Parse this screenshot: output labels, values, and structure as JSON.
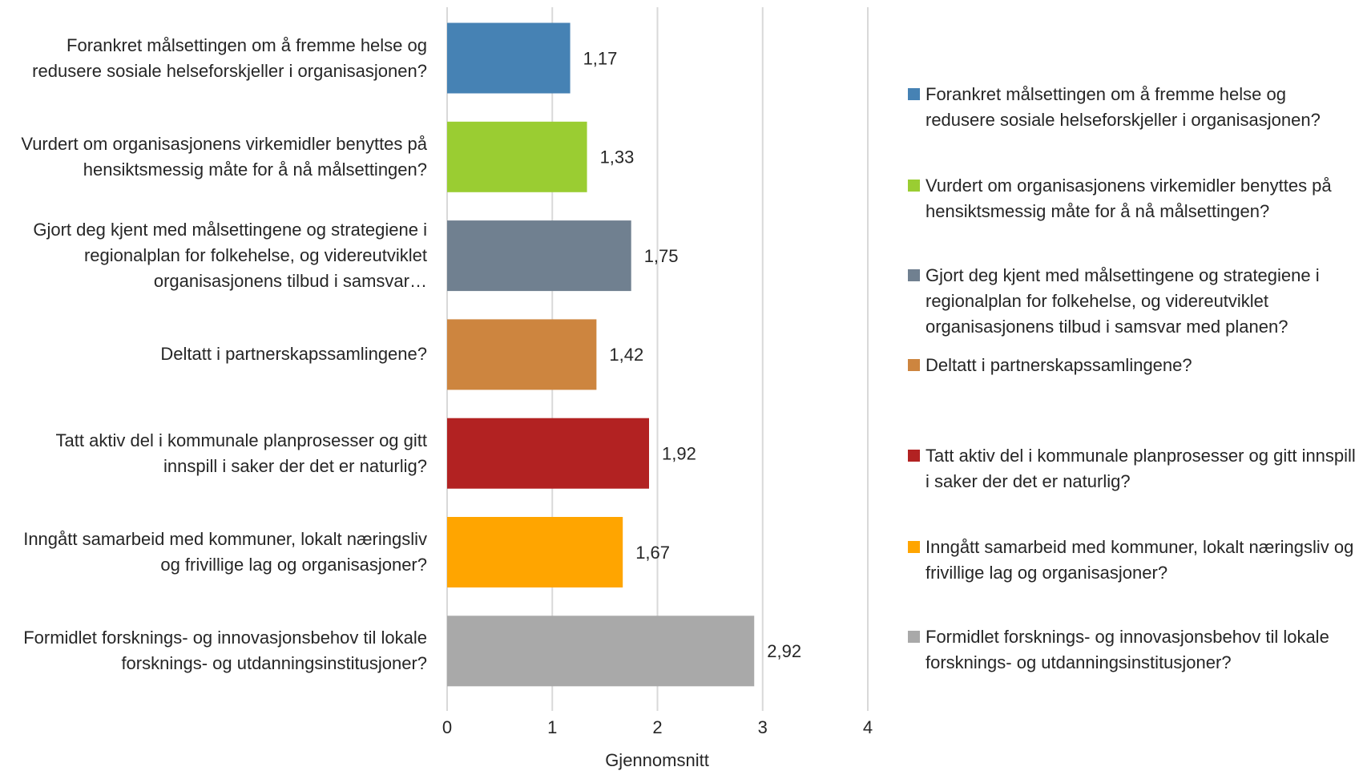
{
  "chart_data": {
    "type": "bar",
    "orientation": "horizontal",
    "x_label": "Gjennomsnitt",
    "categories": [
      "Forankret målsettingen om å fremme helse og redusere sosiale helseforskjeller i organisasjonen?",
      "Vurdert om organisasjonens virkemidler benyttes på hensiktsmessig måte for å nå målsettingen?",
      "Gjort deg kjent med målsettingene og strategiene i regionalplan for folkehelse, og videreutviklet organisasjonens tilbud i samsvar…",
      "Deltatt i partnerskapssamlingene?",
      "Tatt aktiv del i kommunale planprosesser og gitt innspill i saker der det er naturlig?",
      "Inngått samarbeid med kommuner, lokalt næringsliv og frivillige lag og organisasjoner?",
      "Formidlet forsknings- og innovasjonsbehov til lokale forsknings- og utdanningsinstitusjoner?"
    ],
    "values": [
      1.17,
      1.33,
      1.75,
      1.42,
      1.92,
      1.67,
      2.92
    ],
    "value_labels": [
      "1,17",
      "1,33",
      "1,75",
      "1,42",
      "1,92",
      "1,67",
      "2,92"
    ],
    "colors": [
      "#4682b4",
      "#9acd32",
      "#708090",
      "#cd853f",
      "#b22222",
      "#ffa500",
      "#a9a9a9"
    ],
    "legend": [
      "Forankret målsettingen om å fremme helse og redusere sosiale helseforskjeller i organisasjonen?",
      "Vurdert om organisasjonens virkemidler benyttes på hensiktsmessig måte for å nå målsettingen?",
      "Gjort deg kjent med målsettingene og strategiene i regionalplan for folkehelse, og videreutviklet organisasjonens tilbud i samsvar med planen?",
      "Deltatt i partnerskapssamlingene?",
      "Tatt aktiv del i kommunale planprosesser og gitt innspill i saker der det er naturlig?",
      "Inngått samarbeid med kommuner, lokalt næringsliv og frivillige lag og organisasjoner?",
      "Formidlet forsknings- og innovasjonsbehov til lokale forsknings- og utdanningsinstitusjoner?"
    ],
    "xlim": [
      0,
      4
    ],
    "xticks": [
      0,
      1,
      2,
      3,
      4
    ],
    "grid": true,
    "legend_position": "right"
  }
}
